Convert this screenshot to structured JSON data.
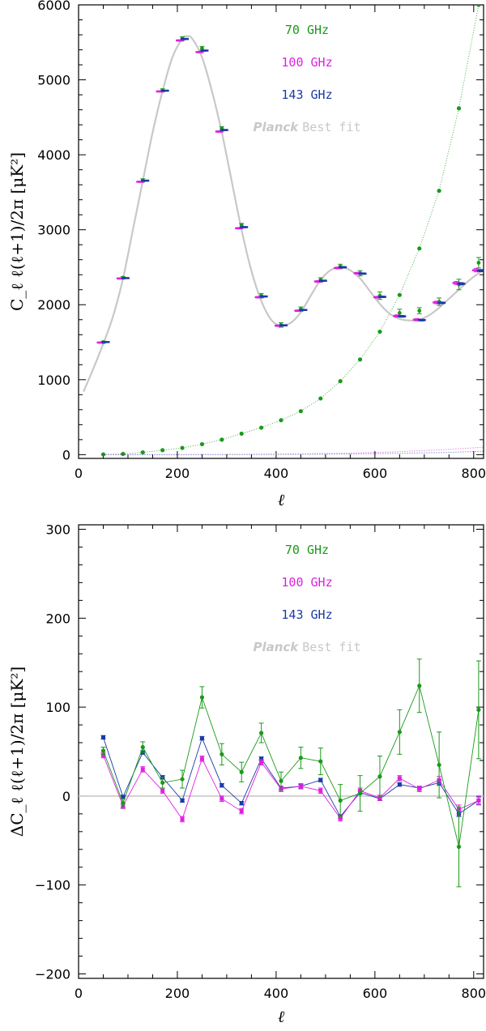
{
  "colors": {
    "ghz70": "#1a9a1a",
    "ghz100": "#e020e0",
    "ghz143": "#1a3aa8",
    "bestfit": "#c8c8c8",
    "axis": "#000000"
  },
  "chart_data": [
    {
      "type": "scatter",
      "title": "",
      "xlabel": "ℓ",
      "ylabel": "C_ℓ ℓ(ℓ+1)/2π [μK²]",
      "xlim": [
        0,
        820
      ],
      "ylim": [
        -50,
        6000
      ],
      "xticks": [
        0,
        200,
        400,
        600,
        800
      ],
      "xtick_labels": [
        "0",
        "200",
        "400",
        "600",
        "800"
      ],
      "yticks": [
        0,
        1000,
        2000,
        3000,
        4000,
        5000,
        6000
      ],
      "ytick_labels": [
        "0",
        "1000",
        "2000",
        "3000",
        "4000",
        "5000",
        "6000"
      ],
      "legend": {
        "placement": "top-center",
        "entries": [
          {
            "label": "70 GHz",
            "color": "#1a9a1a"
          },
          {
            "label": "100 GHz",
            "color": "#e020e0"
          },
          {
            "label": "143 GHz",
            "color": "#1a3aa8"
          },
          {
            "label_bold": "Planck",
            "label": "Best fit",
            "color": "#c8c8c8"
          }
        ]
      },
      "best_fit": {
        "name": "Planck Best fit",
        "x": [
          10,
          30,
          50,
          70,
          90,
          110,
          130,
          150,
          170,
          190,
          210,
          220,
          230,
          250,
          270,
          290,
          310,
          330,
          350,
          370,
          390,
          410,
          430,
          450,
          470,
          490,
          510,
          530,
          550,
          570,
          590,
          610,
          630,
          650,
          670,
          690,
          710,
          730,
          750,
          770,
          790,
          810,
          820
        ],
        "y": [
          840,
          1150,
          1480,
          1850,
          2350,
          3000,
          3650,
          4300,
          4850,
          5300,
          5550,
          5580,
          5550,
          5300,
          4850,
          4300,
          3650,
          3000,
          2450,
          2050,
          1800,
          1720,
          1760,
          1900,
          2120,
          2330,
          2460,
          2500,
          2460,
          2350,
          2180,
          2010,
          1880,
          1810,
          1790,
          1800,
          1860,
          1960,
          2080,
          2200,
          2320,
          2420,
          2460
        ]
      },
      "series": [
        {
          "name": "70 GHz",
          "x": [
            50,
            90,
            130,
            170,
            210,
            250,
            290,
            330,
            370,
            410,
            450,
            490,
            530,
            570,
            610,
            650,
            690,
            730,
            770,
            810
          ],
          "y": [
            1500,
            2360,
            3660,
            4860,
            5550,
            5420,
            4350,
            3060,
            2120,
            1730,
            1940,
            2330,
            2510,
            2420,
            2120,
            1890,
            1920,
            2040,
            2270,
            2560
          ],
          "yerr": [
            15,
            15,
            20,
            20,
            25,
            25,
            25,
            25,
            30,
            30,
            30,
            30,
            30,
            35,
            50,
            50,
            40,
            50,
            70,
            70
          ]
        },
        {
          "name": "100 GHz",
          "x": [
            50,
            90,
            130,
            170,
            210,
            250,
            290,
            330,
            370,
            410,
            450,
            490,
            530,
            570,
            610,
            650,
            690,
            730,
            770,
            810
          ],
          "y": [
            1495,
            2350,
            3640,
            4845,
            5525,
            5370,
            4310,
            3020,
            2100,
            1720,
            1920,
            2310,
            2490,
            2420,
            2100,
            1850,
            1800,
            2030,
            2290,
            2460
          ],
          "yerr": [
            8,
            8,
            8,
            8,
            10,
            10,
            10,
            10,
            10,
            10,
            10,
            12,
            12,
            12,
            12,
            15,
            15,
            18,
            20,
            22
          ]
        },
        {
          "name": "143 GHz",
          "x": [
            50,
            90,
            130,
            170,
            210,
            250,
            290,
            330,
            370,
            410,
            450,
            490,
            530,
            570,
            610,
            650,
            690,
            730,
            770,
            810
          ],
          "y": [
            1502,
            2355,
            3655,
            4855,
            5545,
            5390,
            4330,
            3035,
            2110,
            1725,
            1930,
            2320,
            2500,
            2415,
            2105,
            1845,
            1795,
            2025,
            2280,
            2455
          ],
          "yerr": [
            6,
            6,
            6,
            6,
            8,
            8,
            8,
            8,
            8,
            8,
            8,
            8,
            10,
            10,
            10,
            12,
            12,
            12,
            15,
            15
          ]
        },
        {
          "name": "70 GHz noise",
          "x": [
            50,
            90,
            130,
            170,
            210,
            250,
            290,
            330,
            370,
            410,
            450,
            490,
            530,
            570,
            610,
            650,
            690,
            730,
            770,
            810
          ],
          "y": [
            3,
            10,
            30,
            60,
            90,
            140,
            200,
            280,
            360,
            460,
            580,
            750,
            980,
            1270,
            1640,
            2130,
            2750,
            3520,
            4620,
            6000
          ]
        },
        {
          "name": "100 GHz noise",
          "x": [
            50,
            150,
            250,
            350,
            450,
            550,
            650,
            750,
            820
          ],
          "y": [
            0,
            0,
            2,
            5,
            10,
            20,
            40,
            70,
            100
          ]
        },
        {
          "name": "143 GHz noise",
          "x": [
            50,
            150,
            250,
            350,
            450,
            550,
            650,
            750,
            820
          ],
          "y": [
            0,
            0,
            1,
            2,
            5,
            10,
            18,
            30,
            45
          ]
        }
      ]
    },
    {
      "type": "line",
      "title": "",
      "xlabel": "ℓ",
      "ylabel": "ΔC_ℓ ℓ(ℓ+1)/2π [μK²]",
      "xlim": [
        0,
        820
      ],
      "ylim": [
        -205,
        305
      ],
      "xticks": [
        0,
        200,
        400,
        600,
        800
      ],
      "xtick_labels": [
        "0",
        "200",
        "400",
        "600",
        "800"
      ],
      "yticks": [
        -200,
        -100,
        0,
        100,
        200,
        300
      ],
      "ytick_labels": [
        "−200",
        "−100",
        "0",
        "100",
        "200",
        "300"
      ],
      "zero_line": 0,
      "legend": {
        "placement": "top-center",
        "entries": [
          {
            "label": "70 GHz",
            "color": "#1a9a1a"
          },
          {
            "label": "100 GHz",
            "color": "#e020e0"
          },
          {
            "label": "143 GHz",
            "color": "#1a3aa8"
          },
          {
            "label_bold": "Planck",
            "label": "Best fit",
            "color": "#c8c8c8"
          }
        ]
      },
      "series": [
        {
          "name": "70 GHz",
          "x": [
            50,
            90,
            130,
            170,
            210,
            250,
            290,
            330,
            370,
            410,
            450,
            490,
            530,
            570,
            610,
            650,
            690,
            730,
            770,
            810
          ],
          "y": [
            51,
            -8,
            55,
            15,
            19,
            111,
            47,
            27,
            71,
            17,
            43,
            39,
            -5,
            3,
            22,
            72,
            124,
            35,
            -57,
            97
          ],
          "yerr": [
            4,
            5,
            6,
            6,
            10,
            12,
            12,
            11,
            11,
            10,
            12,
            15,
            18,
            20,
            23,
            25,
            30,
            37,
            45,
            55
          ]
        },
        {
          "name": "100 GHz",
          "x": [
            50,
            90,
            130,
            170,
            210,
            250,
            290,
            330,
            370,
            410,
            450,
            490,
            530,
            570,
            610,
            650,
            690,
            730,
            770,
            810
          ],
          "y": [
            46,
            -11,
            30,
            6,
            -26,
            42,
            -3,
            -17,
            38,
            8,
            11,
            6,
            -25,
            6,
            -2,
            20,
            8,
            18,
            -15,
            -5
          ],
          "yerr": [
            3,
            3,
            3,
            3,
            3,
            3,
            3,
            3,
            3,
            3,
            3,
            3,
            3,
            3,
            3,
            3,
            3,
            4,
            5,
            5
          ]
        },
        {
          "name": "143 GHz",
          "x": [
            50,
            90,
            130,
            170,
            210,
            250,
            290,
            330,
            370,
            410,
            450,
            490,
            530,
            570,
            610,
            650,
            690,
            730,
            770,
            810
          ],
          "y": [
            66,
            -1,
            49,
            21,
            -5,
            65,
            12,
            -8,
            42,
            9,
            11,
            18,
            -23,
            4,
            -3,
            13,
            9,
            15,
            -20,
            -5
          ],
          "yerr": [
            2,
            2,
            2,
            2,
            2,
            2,
            2,
            2,
            2,
            2,
            2,
            2,
            2,
            2,
            2,
            2,
            2,
            3,
            3,
            4
          ]
        }
      ]
    }
  ]
}
